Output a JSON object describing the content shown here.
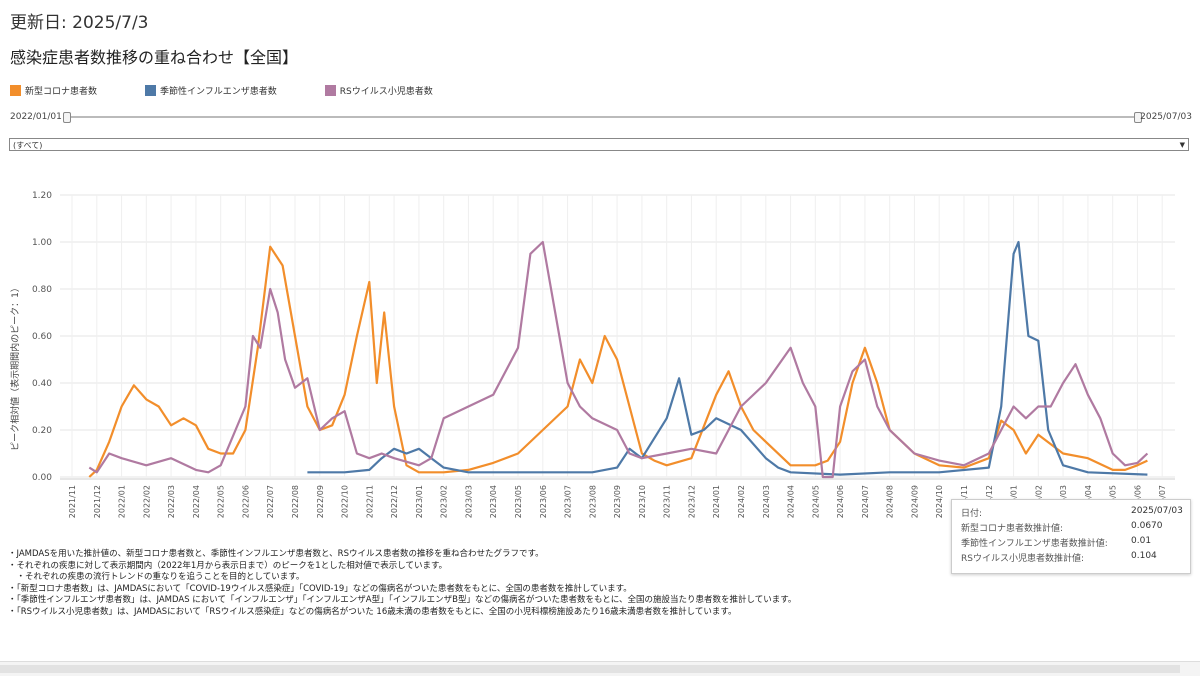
{
  "header": {
    "updated": "更新日: 2025/7/3",
    "title": "感染症患者数推移の重ね合わせ【全国】"
  },
  "legend": [
    {
      "label": "新型コロナ患者数",
      "color": "#f28e2b"
    },
    {
      "label": "季節性インフルエンザ患者数",
      "color": "#4e79a7"
    },
    {
      "label": "RSウイルス小児患者数",
      "color": "#b07aa1"
    }
  ],
  "slider": {
    "start_label": "2022/01/01",
    "end_label": "2025/07/03"
  },
  "filter": {
    "selected": "(すべて)"
  },
  "tooltip": {
    "rows": [
      {
        "label": "日付:",
        "value": "2025/07/03"
      },
      {
        "label": "新型コロナ患者数推計値:",
        "value": "0.0670"
      },
      {
        "label": "季節性インフルエンザ患者数推計値:",
        "value": "0.01"
      },
      {
        "label": "RSウイルス小児患者数推計値:",
        "value": "0.104"
      }
    ]
  },
  "notes": [
    "・JAMDASを用いた推計値の、新型コロナ患者数と、季節性インフルエンザ患者数と、RSウイルス患者数の推移を重ね合わせたグラフです。",
    "・それぞれの疾患に対して表示期間内（2022年1月から表示日まで）のピークを1とした相対値で表示しています。",
    "　・それぞれの疾患の流行トレンドの重なりを追うことを目的としています。",
    "・「新型コロナ患者数」は、JAMDASにおいて「COVID-19ウイルス感染症」「COVID-19」などの傷病名がついた患者数をもとに、全国の患者数を推計しています。",
    "・「季節性インフルエンザ患者数」は、JAMDAS において「インフルエンザ」「インフルエンザA型」「インフルエンザB型」などの傷病名がついた患者数をもとに、全国の施設当たり患者数を推計しています。",
    "・「RSウイルス小児患者数」は、JAMDASにおいて「RSウイルス感染症」などの傷病名がついた 16歳未満の患者数をもとに、全国の小児科標榜施設あたり16歳未満患者数を推計しています。"
  ],
  "chart_data": {
    "type": "line",
    "ylabel": "ピーク相対値（表示期間内のピーク：1）",
    "ylim": [
      0,
      1.2
    ],
    "yticks": [
      "0.00",
      "0.20",
      "0.40",
      "0.60",
      "0.80",
      "1.00",
      "1.20"
    ],
    "x_month_index_origin": "2021/11",
    "xticks": [
      "2021/11",
      "2021/12",
      "2022/01",
      "2022/02",
      "2022/03",
      "2022/04",
      "2022/05",
      "2022/06",
      "2022/07",
      "2022/08",
      "2022/09",
      "2022/10",
      "2022/11",
      "2022/12",
      "2023/01",
      "2023/02",
      "2023/03",
      "2023/04",
      "2023/05",
      "2023/06",
      "2023/07",
      "2023/08",
      "2023/09",
      "2023/10",
      "2023/11",
      "2023/12",
      "2024/01",
      "2024/02",
      "2024/03",
      "2024/04",
      "2024/05",
      "2024/06",
      "2024/07",
      "2024/08",
      "2024/09",
      "2024/10",
      "2024/11",
      "2024/12",
      "2025/01",
      "2025/02",
      "2025/03",
      "2025/04",
      "2025/05",
      "2025/06",
      "2025/07"
    ],
    "series": [
      {
        "name": "新型コロナ患者数",
        "color": "#f28e2b",
        "points": [
          [
            0.7,
            0.0
          ],
          [
            1,
            0.03
          ],
          [
            1.5,
            0.15
          ],
          [
            2,
            0.3
          ],
          [
            2.5,
            0.39
          ],
          [
            3,
            0.33
          ],
          [
            3.5,
            0.3
          ],
          [
            4,
            0.22
          ],
          [
            4.5,
            0.25
          ],
          [
            5,
            0.22
          ],
          [
            5.5,
            0.12
          ],
          [
            6,
            0.1
          ],
          [
            6.5,
            0.1
          ],
          [
            7,
            0.2
          ],
          [
            7.5,
            0.55
          ],
          [
            8,
            0.98
          ],
          [
            8.5,
            0.9
          ],
          [
            9,
            0.6
          ],
          [
            9.5,
            0.3
          ],
          [
            10,
            0.2
          ],
          [
            10.5,
            0.22
          ],
          [
            11,
            0.35
          ],
          [
            11.5,
            0.6
          ],
          [
            12,
            0.83
          ],
          [
            12.3,
            0.4
          ],
          [
            12.6,
            0.7
          ],
          [
            13,
            0.3
          ],
          [
            13.5,
            0.05
          ],
          [
            14,
            0.02
          ],
          [
            15,
            0.02
          ],
          [
            16,
            0.03
          ],
          [
            17,
            0.06
          ],
          [
            18,
            0.1
          ],
          [
            19,
            0.2
          ],
          [
            20,
            0.3
          ],
          [
            20.5,
            0.5
          ],
          [
            21,
            0.4
          ],
          [
            21.5,
            0.6
          ],
          [
            22,
            0.5
          ],
          [
            22.5,
            0.3
          ],
          [
            23,
            0.1
          ],
          [
            23.5,
            0.07
          ],
          [
            24,
            0.05
          ],
          [
            25,
            0.08
          ],
          [
            26,
            0.35
          ],
          [
            26.5,
            0.45
          ],
          [
            27,
            0.3
          ],
          [
            27.5,
            0.2
          ],
          [
            28,
            0.15
          ],
          [
            29,
            0.05
          ],
          [
            30,
            0.05
          ],
          [
            30.5,
            0.07
          ],
          [
            31,
            0.15
          ],
          [
            31.5,
            0.4
          ],
          [
            32,
            0.55
          ],
          [
            32.5,
            0.4
          ],
          [
            33,
            0.2
          ],
          [
            34,
            0.1
          ],
          [
            35,
            0.05
          ],
          [
            36,
            0.04
          ],
          [
            37,
            0.08
          ],
          [
            37.5,
            0.24
          ],
          [
            38,
            0.2
          ],
          [
            38.5,
            0.1
          ],
          [
            39,
            0.18
          ],
          [
            40,
            0.1
          ],
          [
            41,
            0.08
          ],
          [
            42,
            0.03
          ],
          [
            42.5,
            0.03
          ],
          [
            43,
            0.05
          ],
          [
            43.4,
            0.07
          ]
        ]
      },
      {
        "name": "季節性インフルエンザ患者数",
        "color": "#4e79a7",
        "points": [
          [
            9.5,
            0.02
          ],
          [
            10,
            0.02
          ],
          [
            11,
            0.02
          ],
          [
            12,
            0.03
          ],
          [
            12.5,
            0.08
          ],
          [
            13,
            0.12
          ],
          [
            13.5,
            0.1
          ],
          [
            14,
            0.12
          ],
          [
            14.5,
            0.08
          ],
          [
            15,
            0.04
          ],
          [
            16,
            0.02
          ],
          [
            17,
            0.02
          ],
          [
            18,
            0.02
          ],
          [
            19,
            0.02
          ],
          [
            20,
            0.02
          ],
          [
            21,
            0.02
          ],
          [
            22,
            0.04
          ],
          [
            22.5,
            0.12
          ],
          [
            23,
            0.08
          ],
          [
            24,
            0.25
          ],
          [
            24.5,
            0.42
          ],
          [
            25,
            0.18
          ],
          [
            25.5,
            0.2
          ],
          [
            26,
            0.25
          ],
          [
            27,
            0.2
          ],
          [
            28,
            0.08
          ],
          [
            28.5,
            0.04
          ],
          [
            29,
            0.02
          ],
          [
            31,
            0.01
          ],
          [
            33,
            0.02
          ],
          [
            35,
            0.02
          ],
          [
            37,
            0.04
          ],
          [
            37.5,
            0.3
          ],
          [
            38,
            0.95
          ],
          [
            38.2,
            1.0
          ],
          [
            38.6,
            0.6
          ],
          [
            39,
            0.58
          ],
          [
            39.4,
            0.2
          ],
          [
            40,
            0.05
          ],
          [
            41,
            0.02
          ],
          [
            43.4,
            0.01
          ]
        ]
      },
      {
        "name": "RSウイルス小児患者数",
        "color": "#b07aa1",
        "points": [
          [
            0.7,
            0.04
          ],
          [
            1,
            0.02
          ],
          [
            1.5,
            0.1
          ],
          [
            2,
            0.08
          ],
          [
            3,
            0.05
          ],
          [
            4,
            0.08
          ],
          [
            5,
            0.03
          ],
          [
            5.5,
            0.02
          ],
          [
            6,
            0.05
          ],
          [
            7,
            0.3
          ],
          [
            7.3,
            0.6
          ],
          [
            7.6,
            0.55
          ],
          [
            8,
            0.8
          ],
          [
            8.3,
            0.7
          ],
          [
            8.6,
            0.5
          ],
          [
            9,
            0.38
          ],
          [
            9.5,
            0.42
          ],
          [
            10,
            0.2
          ],
          [
            10.5,
            0.25
          ],
          [
            11,
            0.28
          ],
          [
            11.5,
            0.1
          ],
          [
            12,
            0.08
          ],
          [
            12.5,
            0.1
          ],
          [
            13,
            0.08
          ],
          [
            14,
            0.05
          ],
          [
            14.5,
            0.08
          ],
          [
            15,
            0.25
          ],
          [
            16,
            0.3
          ],
          [
            17,
            0.35
          ],
          [
            18,
            0.55
          ],
          [
            18.5,
            0.95
          ],
          [
            19,
            1.0
          ],
          [
            19.5,
            0.7
          ],
          [
            20,
            0.4
          ],
          [
            20.5,
            0.3
          ],
          [
            21,
            0.25
          ],
          [
            22,
            0.2
          ],
          [
            22.5,
            0.1
          ],
          [
            23,
            0.08
          ],
          [
            24,
            0.1
          ],
          [
            25,
            0.12
          ],
          [
            26,
            0.1
          ],
          [
            26.5,
            0.2
          ],
          [
            27,
            0.3
          ],
          [
            28,
            0.4
          ],
          [
            29,
            0.55
          ],
          [
            29.5,
            0.4
          ],
          [
            30,
            0.3
          ],
          [
            30.3,
            0.0
          ],
          [
            30.7,
            0.0
          ],
          [
            31,
            0.3
          ],
          [
            31.5,
            0.45
          ],
          [
            32,
            0.5
          ],
          [
            32.5,
            0.3
          ],
          [
            33,
            0.2
          ],
          [
            34,
            0.1
          ],
          [
            35,
            0.07
          ],
          [
            36,
            0.05
          ],
          [
            37,
            0.1
          ],
          [
            37.5,
            0.2
          ],
          [
            38,
            0.3
          ],
          [
            38.5,
            0.25
          ],
          [
            39,
            0.3
          ],
          [
            39.5,
            0.3
          ],
          [
            40,
            0.4
          ],
          [
            40.5,
            0.48
          ],
          [
            41,
            0.35
          ],
          [
            41.5,
            0.25
          ],
          [
            42,
            0.1
          ],
          [
            42.5,
            0.05
          ],
          [
            43,
            0.06
          ],
          [
            43.4,
            0.1
          ]
        ]
      }
    ]
  }
}
